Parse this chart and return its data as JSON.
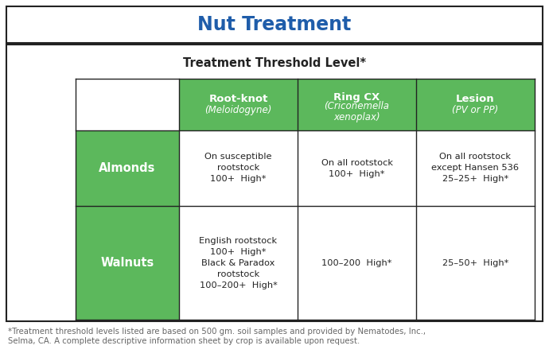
{
  "title": "Nut Treatment",
  "title_color": "#1F5DAA",
  "subtitle": "Treatment Threshold Level*",
  "green_color": "#5CB85C",
  "white_text": "#FFFFFF",
  "black_text": "#222222",
  "gray_text": "#666666",
  "border_color": "#222222",
  "footer_text": "*Treatment threshold levels listed are based on 500 gm. soil samples and provided by Nematodes, Inc.,\nSelma, CA. A complete descriptive information sheet by crop is available upon request.",
  "col_headers": [
    [
      "Root-knot",
      "(Meloidogyne)"
    ],
    [
      "Ring CX",
      "(Criconemella\nxenoplax)"
    ],
    [
      "Lesion",
      "(PV or PP)"
    ]
  ],
  "row_headers": [
    "Almonds",
    "Walnuts"
  ],
  "cells": [
    [
      "On susceptible\nrootstock\n100+  High*",
      "On all rootstock\n100+  High*",
      "On all rootstock\nexcept Hansen 536\n25–25+  High*"
    ],
    [
      "English rootstock\n100+  High*\nBlack & Paradox\nrootstock\n100–200+  High*",
      "100–200  High*",
      "25–50+  High*"
    ]
  ],
  "fig_width": 6.9,
  "fig_height": 4.54,
  "dpi": 100
}
